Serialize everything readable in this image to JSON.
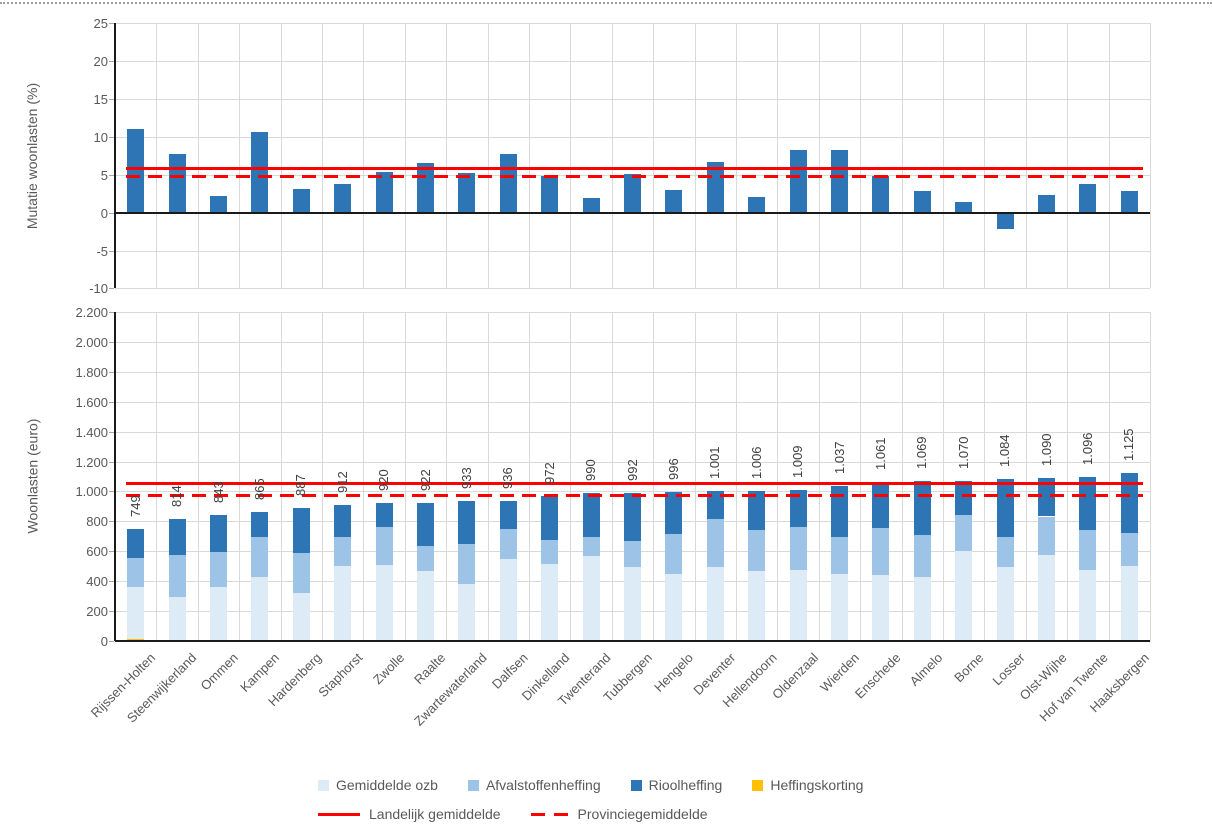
{
  "legend": {
    "row1": [
      {
        "name": "Gemiddelde ozb",
        "color": "#DDEBF7"
      },
      {
        "name": "Afvalstoffenheffing",
        "color": "#9DC3E6"
      },
      {
        "name": "Rioolheffing",
        "color": "#2E75B6"
      },
      {
        "name": "Heffingskorting",
        "color": "#FFC000"
      }
    ],
    "row2": [
      {
        "name": "Landelijk gemiddelde",
        "style": "solid",
        "color": "#FF0000"
      },
      {
        "name": "Provinciegemiddelde",
        "style": "dashed",
        "color": "#FF0000"
      }
    ]
  },
  "chart_data": [
    {
      "id": "mutation",
      "type": "bar",
      "title": "",
      "ylabel": "Mutatie woonlasten (%)",
      "xlabel": "",
      "ylim": [
        -10,
        25
      ],
      "ytick_step": 5,
      "ytick_labels": [
        "25",
        "20",
        "15",
        "10",
        "5",
        "0",
        "-5",
        "-10"
      ],
      "grid": true,
      "bar_color": "#2E75B6",
      "categories": [
        "Rijssen-Holten",
        "Steenwijkerland",
        "Ommen",
        "Kampen",
        "Hardenberg",
        "Staphorst",
        "Zwolle",
        "Raalte",
        "Zwartewaterland",
        "Dalfsen",
        "Dinkelland",
        "Twenterand",
        "Tubbergen",
        "Hengelo",
        "Deventer",
        "Hellendoorn",
        "Oldenzaal",
        "Wierden",
        "Enschede",
        "Almelo",
        "Borne",
        "Losser",
        "Olst-Wijhe",
        "Hof van Twente",
        "Haaksbergen"
      ],
      "values": [
        11.0,
        7.8,
        2.2,
        10.6,
        3.1,
        3.8,
        5.4,
        6.5,
        5.2,
        7.7,
        4.8,
        1.9,
        5.1,
        3.0,
        6.7,
        2.1,
        8.3,
        8.3,
        4.8,
        2.9,
        1.4,
        -2.2,
        2.4,
        3.8,
        2.9
      ],
      "reference_lines": [
        {
          "name": "Landelijk gemiddelde",
          "value": 5.8,
          "style": "solid",
          "color": "#FF0000"
        },
        {
          "name": "Provinciegemiddelde",
          "value": 4.8,
          "style": "dashed",
          "color": "#FF0000"
        }
      ]
    },
    {
      "id": "woonlasten",
      "type": "stacked-bar",
      "title": "",
      "ylabel": "Woonlasten (euro)",
      "xlabel": "",
      "ylim": [
        0,
        2200
      ],
      "ytick_step": 200,
      "ytick_labels": [
        "2.200",
        "2.000",
        "1.800",
        "1.600",
        "1.400",
        "1.200",
        "1.000",
        "800",
        "600",
        "400",
        "200",
        "0"
      ],
      "grid": true,
      "categories": [
        "Rijssen-Holten",
        "Steenwijkerland",
        "Ommen",
        "Kampen",
        "Hardenberg",
        "Staphorst",
        "Zwolle",
        "Raalte",
        "Zwartewaterland",
        "Dalfsen",
        "Dinkelland",
        "Twenterand",
        "Tubbergen",
        "Hengelo",
        "Deventer",
        "Hellendoorn",
        "Oldenzaal",
        "Wierden",
        "Enschede",
        "Almelo",
        "Borne",
        "Losser",
        "Olst-Wijhe",
        "Hof van Twente",
        "Haaksbergen"
      ],
      "stack_order_bottom_to_top": [
        "Heffingskorting",
        "Gemiddelde ozb",
        "Afvalstoffenheffing",
        "Rioolheffing"
      ],
      "series": [
        {
          "name": "Heffingskorting",
          "color": "#FFC000",
          "values": [
            13,
            0,
            0,
            0,
            0,
            0,
            0,
            0,
            0,
            0,
            0,
            0,
            0,
            0,
            0,
            0,
            0,
            0,
            0,
            0,
            0,
            0,
            0,
            0,
            0
          ]
        },
        {
          "name": "Gemiddelde ozb",
          "color": "#DDEBF7",
          "values": [
            345,
            295,
            362,
            430,
            317,
            500,
            509,
            468,
            383,
            548,
            516,
            566,
            494,
            445,
            493,
            468,
            473,
            447,
            441,
            429,
            601,
            496,
            575,
            475,
            498
          ]
        },
        {
          "name": "Afvalstoffenheffing",
          "color": "#9DC3E6",
          "values": [
            196,
            280,
            235,
            268,
            268,
            198,
            253,
            167,
            267,
            200,
            160,
            129,
            174,
            272,
            323,
            276,
            291,
            251,
            314,
            279,
            239,
            197,
            257,
            269,
            224
          ]
        },
        {
          "name": "Rioolheffing",
          "color": "#2E75B6",
          "values": [
            195,
            239,
            246,
            167,
            302,
            214,
            158,
            287,
            283,
            188,
            296,
            295,
            324,
            279,
            185,
            262,
            245,
            339,
            306,
            361,
            230,
            391,
            258,
            352,
            403
          ]
        }
      ],
      "totals": [
        749,
        814,
        843,
        865,
        887,
        912,
        920,
        922,
        933,
        936,
        972,
        990,
        992,
        996,
        1001,
        1006,
        1009,
        1037,
        1061,
        1069,
        1070,
        1084,
        1090,
        1096,
        1125
      ],
      "total_labels": [
        "749",
        "814",
        "843",
        "865",
        "887",
        "912",
        "920",
        "922",
        "933",
        "936",
        "972",
        "990",
        "992",
        "996",
        "1.001",
        "1.006",
        "1.009",
        "1.037",
        "1.061",
        "1.069",
        "1.070",
        "1.084",
        "1.090",
        "1.096",
        "1.125"
      ],
      "reference_lines": [
        {
          "name": "Landelijk gemiddelde",
          "value": 1050,
          "style": "solid",
          "color": "#FF0000"
        },
        {
          "name": "Provinciegemiddelde",
          "value": 970,
          "style": "dashed",
          "color": "#FF0000"
        }
      ]
    }
  ]
}
